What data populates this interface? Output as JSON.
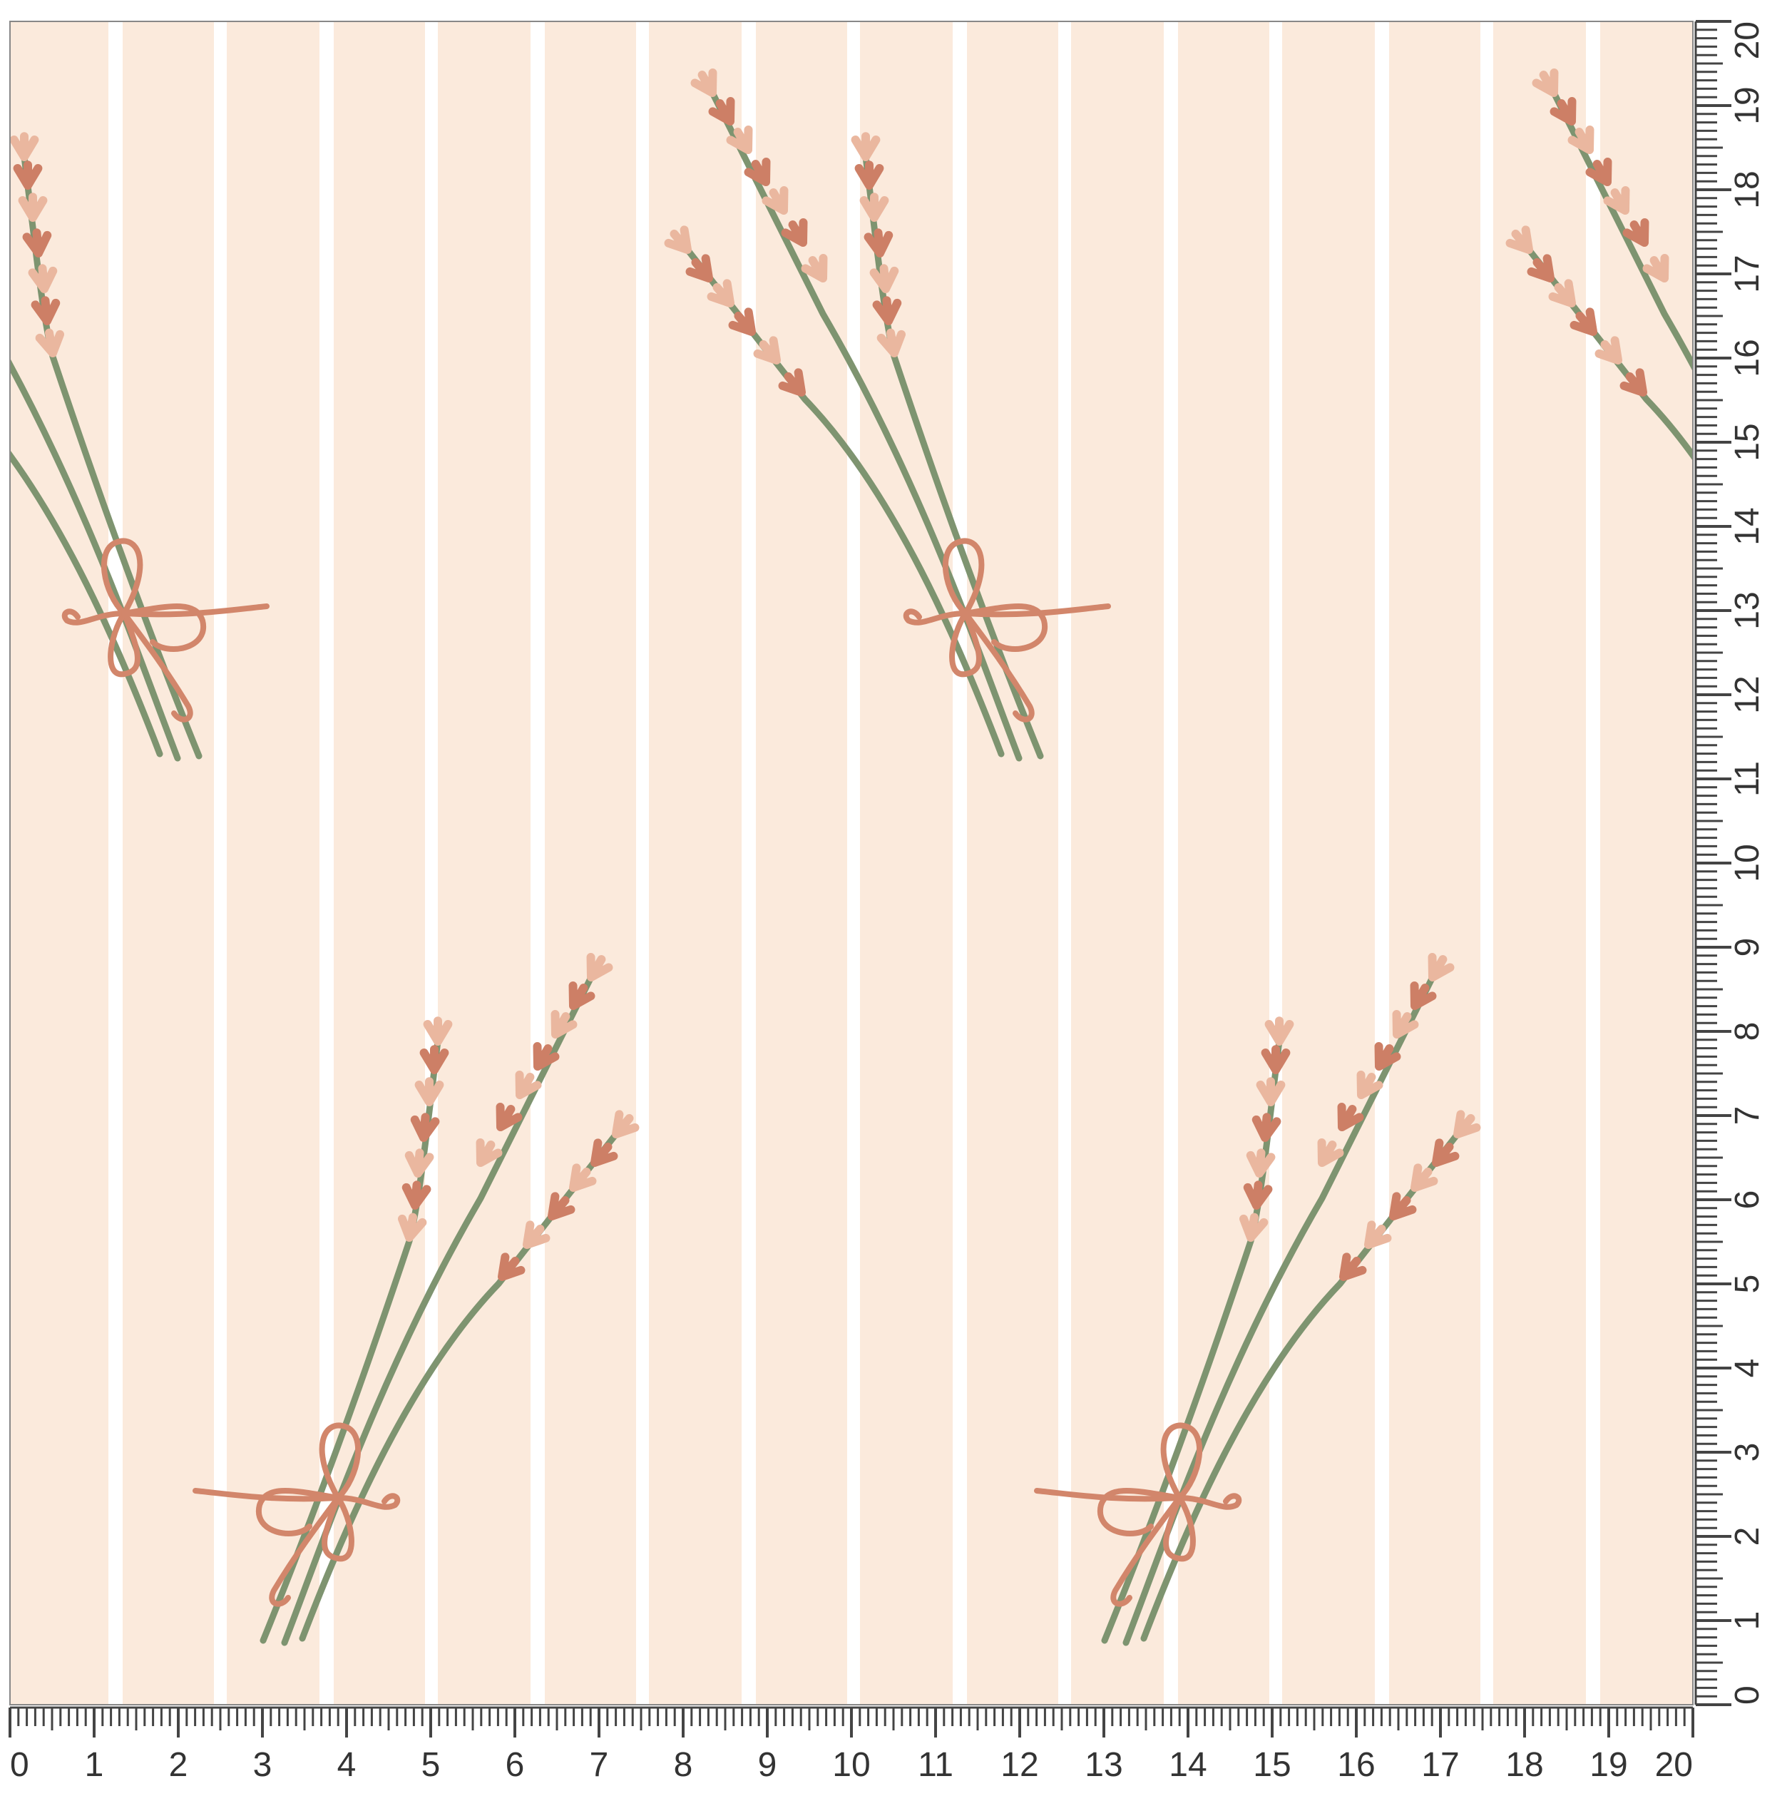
{
  "pattern": {
    "background_color": "#fbeadc",
    "stripe_color": "#ffffff",
    "stem_color": "#7e9470",
    "flower_dark_color": "#cd7f66",
    "flower_light_color": "#eab79f",
    "ribbon_color": "#d2866b",
    "motif": "lavender-bouquet-with-bow"
  },
  "ruler": {
    "bottom_labels": [
      "0",
      "1",
      "2",
      "3",
      "4",
      "5",
      "6",
      "7",
      "8",
      "9",
      "10",
      "11",
      "12",
      "13",
      "14",
      "15",
      "16",
      "17",
      "18",
      "19",
      "20"
    ],
    "right_labels": [
      "0",
      "1",
      "2",
      "3",
      "4",
      "5",
      "6",
      "7",
      "8",
      "9",
      "10",
      "11",
      "12",
      "13",
      "14",
      "15",
      "16",
      "17",
      "18",
      "19",
      "20"
    ],
    "tick_color": "#444444"
  }
}
